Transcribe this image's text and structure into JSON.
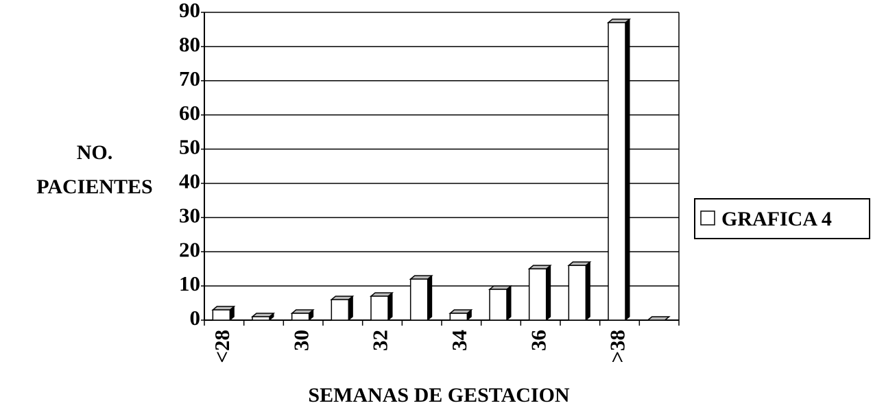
{
  "chart_data": {
    "type": "bar",
    "y_label": [
      "NO.",
      "PACIENTES"
    ],
    "x_label": "SEMANAS DE GESTACION",
    "categories": [
      "<28",
      null,
      "30",
      null,
      "32",
      null,
      "34",
      null,
      "36",
      null,
      ">38",
      null
    ],
    "series": [
      {
        "name": "GRAFICA 4",
        "color": "#ffffff",
        "values": [
          3,
          1,
          2,
          6,
          7,
          12,
          2,
          9,
          15,
          16,
          87,
          0
        ]
      }
    ],
    "ylim": [
      0,
      90
    ],
    "yticks": [
      0,
      10,
      20,
      30,
      40,
      50,
      60,
      70,
      80,
      90
    ],
    "grid": true,
    "legend": "right"
  }
}
